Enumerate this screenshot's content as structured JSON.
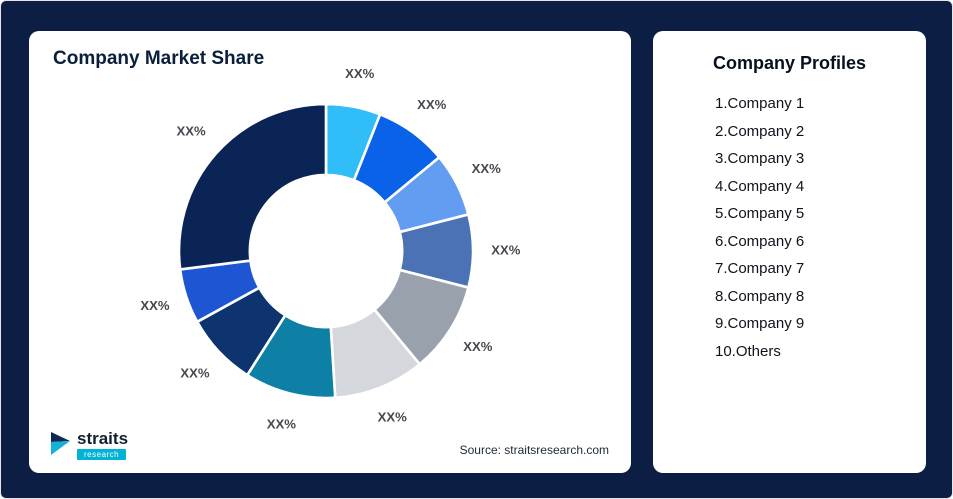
{
  "background_color": "#0d1e44",
  "left_card": {
    "title": "Company Market Share",
    "source": "Source: straitsresearch.com",
    "logo": {
      "text": "straits",
      "subtext": "research"
    }
  },
  "right_card": {
    "title": "Company Profiles",
    "items": [
      "1.Company 1",
      "2.Company 2",
      "3.Company 3",
      "4.Company 4",
      "5.Company 5",
      "6.Company 6",
      "7.Company 7",
      "8.Company 8",
      "9.Company 9",
      "10.Others"
    ]
  },
  "chart_data": {
    "type": "pie",
    "variant": "donut",
    "title": "Company Market Share",
    "legend_position": "none",
    "slices": [
      {
        "label": "XX%",
        "value": 6,
        "color": "#30bdf8"
      },
      {
        "label": "XX%",
        "value": 8,
        "color": "#0a62e8"
      },
      {
        "label": "XX%",
        "value": 7,
        "color": "#639df2"
      },
      {
        "label": "XX%",
        "value": 8,
        "color": "#4c72b6"
      },
      {
        "label": "XX%",
        "value": 10,
        "color": "#98a1ac"
      },
      {
        "label": "XX%",
        "value": 10,
        "color": "#d4d7dc"
      },
      {
        "label": "XX%",
        "value": 10,
        "color": "#0e80a6"
      },
      {
        "label": "XX%",
        "value": 8,
        "color": "#0e3470"
      },
      {
        "label": "XX%",
        "value": 6,
        "color": "#1d55d3"
      },
      {
        "label": "XX%",
        "value": 27,
        "color": "#0b2456"
      }
    ]
  }
}
